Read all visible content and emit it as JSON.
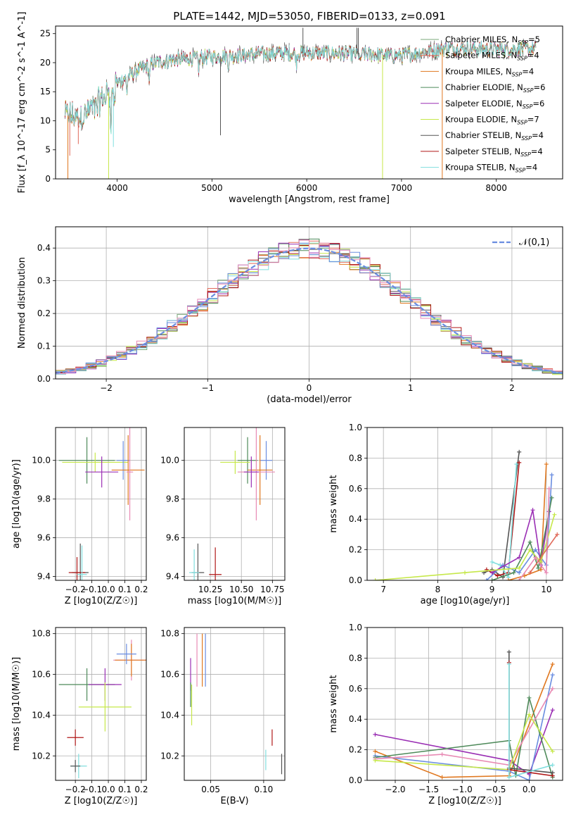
{
  "title": "PLATE=1442, MJD=53050, FIBERID=0133, z=0.091",
  "series": [
    {
      "name": "Chabrier MILES, N_SSP=5",
      "color": "#7aa97a"
    },
    {
      "name": "Salpeter MILES, N_SSP=4",
      "color": "#e06a5a"
    },
    {
      "name": "Kroupa MILES, N_SSP=4",
      "color": "#e07820"
    },
    {
      "name": "Chabrier ELODIE, N_SSP=6",
      "color": "#4e8a5a"
    },
    {
      "name": "Salpeter ELODIE, N_SSP=6",
      "color": "#9a2fb4"
    },
    {
      "name": "Kroupa ELODIE, N_SSP=7",
      "color": "#c6e84a"
    },
    {
      "name": "Chabrier STELIB, N_SSP=4",
      "color": "#555555"
    },
    {
      "name": "Salpeter STELIB, N_SSP=4",
      "color": "#b01818"
    },
    {
      "name": "Kroupa STELIB, N_SSP=4",
      "color": "#80dede"
    }
  ],
  "extra_colors": {
    "blue": "#6a8de0",
    "pink": "#e88ab4",
    "gray": "#808080"
  },
  "chart_data": [
    {
      "id": "spectrum",
      "type": "line",
      "xlabel": "wavelength [Angstrom, rest frame]",
      "ylabel": "Flux [f_λ 10^-17 erg cm^-2 s^-1 A^-1]",
      "xlim": [
        3350,
        8700
      ],
      "ylim": [
        0,
        26.3
      ],
      "xticks": [
        4000,
        5000,
        6000,
        7000,
        8000
      ],
      "yticks": [
        0,
        5,
        10,
        15,
        20,
        25
      ],
      "legend_position": "top-right",
      "spectrum_shape": {
        "x": [
          3450,
          3600,
          3800,
          4000,
          4200,
          4400,
          4600,
          5000,
          5500,
          6000,
          6500,
          7000,
          7500,
          8000,
          8400
        ],
        "y": [
          11,
          10.5,
          13,
          16.5,
          18.5,
          20,
          20.5,
          21,
          21.5,
          21.7,
          21.5,
          21.2,
          22.5,
          22.3,
          22.4
        ]
      }
    },
    {
      "id": "residual_histogram",
      "type": "line",
      "xlabel": "(data-model)/error",
      "ylabel": "Normed distribution",
      "xlim": [
        -2.5,
        2.5
      ],
      "ylim": [
        0,
        0.465
      ],
      "xticks": [
        -2,
        -1,
        0,
        1,
        2
      ],
      "yticks": [
        0.0,
        0.1,
        0.2,
        0.3,
        0.4
      ],
      "legend_position": "top-right",
      "reference": {
        "name": "𝒩(0,1)",
        "mean": 0,
        "sd": 1
      }
    },
    {
      "id": "age_vs_Z",
      "type": "scatter",
      "xlabel": "Z [log10(Z/Z☉)]",
      "ylabel": "age  [log10(age/yr)]",
      "xlim": [
        -0.32,
        0.23
      ],
      "ylim": [
        9.38,
        10.17
      ],
      "xticks": [
        -0.2,
        -0.1,
        0.0,
        0.1,
        0.2
      ],
      "yticks": [
        9.4,
        9.6,
        9.8,
        10.0
      ],
      "points": [
        {
          "x": -0.13,
          "y": 10.0,
          "xerr": 0.17,
          "yerr": 0.12,
          "c": "#4e8a5a"
        },
        {
          "x": -0.08,
          "y": 9.99,
          "xerr": 0.2,
          "yerr": 0.05,
          "c": "#c6e84a"
        },
        {
          "x": 0.09,
          "y": 10.0,
          "xerr": 0.04,
          "yerr": 0.1,
          "c": "#6a8de0"
        },
        {
          "x": 0.12,
          "y": 9.95,
          "xerr": 0.1,
          "yerr": 0.18,
          "c": "#e07820"
        },
        {
          "x": 0.13,
          "y": 9.94,
          "xerr": 0.02,
          "yerr": 0.25,
          "c": "#e88ab4"
        },
        {
          "x": -0.04,
          "y": 9.94,
          "xerr": 0.1,
          "yerr": 0.08,
          "c": "#9a2fb4"
        },
        {
          "x": -0.17,
          "y": 9.42,
          "xerr": 0.05,
          "yerr": 0.15,
          "c": "#555555"
        },
        {
          "x": -0.19,
          "y": 9.42,
          "xerr": 0.05,
          "yerr": 0.08,
          "c": "#b01818"
        },
        {
          "x": -0.16,
          "y": 9.41,
          "xerr": 0.03,
          "yerr": 0.15,
          "c": "#80dede"
        }
      ]
    },
    {
      "id": "age_vs_mass",
      "type": "scatter",
      "xlabel": "mass [log10(M/M☉)]",
      "ylabel": "",
      "xlim": [
        10.04,
        10.85
      ],
      "ylim": [
        9.38,
        10.17
      ],
      "xticks": [
        10.25,
        10.5,
        10.75
      ],
      "yticks": [
        9.4,
        9.6,
        9.8,
        10.0
      ],
      "points": [
        {
          "x": 10.55,
          "y": 10.0,
          "xerr": 0.08,
          "yerr": 0.12,
          "c": "#4e8a5a"
        },
        {
          "x": 10.45,
          "y": 9.99,
          "xerr": 0.12,
          "yerr": 0.06,
          "c": "#c6e84a"
        },
        {
          "x": 10.7,
          "y": 10.0,
          "xerr": 0.05,
          "yerr": 0.1,
          "c": "#6a8de0"
        },
        {
          "x": 10.65,
          "y": 9.95,
          "xerr": 0.1,
          "yerr": 0.18,
          "c": "#e07820"
        },
        {
          "x": 10.62,
          "y": 9.94,
          "xerr": 0.15,
          "yerr": 0.25,
          "c": "#e88ab4"
        },
        {
          "x": 10.58,
          "y": 9.94,
          "xerr": 0.06,
          "yerr": 0.08,
          "c": "#9a2fb4"
        },
        {
          "x": 10.15,
          "y": 9.42,
          "xerr": 0.05,
          "yerr": 0.15,
          "c": "#555555"
        },
        {
          "x": 10.29,
          "y": 9.41,
          "xerr": 0.05,
          "yerr": 0.14,
          "c": "#b01818"
        },
        {
          "x": 10.12,
          "y": 9.42,
          "xerr": 0.04,
          "yerr": 0.12,
          "c": "#80dede"
        }
      ]
    },
    {
      "id": "mass_weight_vs_age",
      "type": "line",
      "xlabel": "age  [log10(age/yr)]",
      "ylabel": "mass weight",
      "xlim": [
        6.7,
        10.3
      ],
      "ylim": [
        0,
        1.0
      ],
      "xticks": [
        7,
        8,
        9,
        10
      ],
      "yticks": [
        0.0,
        0.2,
        0.4,
        0.6,
        0.8,
        1.0
      ],
      "lines": [
        {
          "c": "#555555",
          "x": [
            8.85,
            9.0,
            9.2,
            9.5
          ],
          "y": [
            0.05,
            0.07,
            0.02,
            0.84
          ]
        },
        {
          "c": "#b01818",
          "x": [
            8.9,
            9.1,
            9.3,
            9.5
          ],
          "y": [
            0.07,
            0.03,
            0.05,
            0.77
          ]
        },
        {
          "c": "#80dede",
          "x": [
            9.0,
            9.15,
            9.3,
            9.45
          ],
          "y": [
            0.12,
            0.1,
            0.02,
            0.76
          ]
        },
        {
          "c": "#6a8de0",
          "x": [
            8.9,
            9.2,
            9.5,
            9.8,
            10.0,
            10.1
          ],
          "y": [
            0.0,
            0.1,
            0.05,
            0.2,
            0.1,
            0.69
          ]
        },
        {
          "c": "#e07820",
          "x": [
            9.3,
            9.6,
            9.9,
            10.0
          ],
          "y": [
            0.0,
            0.03,
            0.07,
            0.76
          ]
        },
        {
          "c": "#9a2fb4",
          "x": [
            9.0,
            9.5,
            9.75,
            9.9,
            10.05
          ],
          "y": [
            0.05,
            0.15,
            0.46,
            0.1,
            0.45
          ]
        },
        {
          "c": "#4e8a5a",
          "x": [
            9.0,
            9.4,
            9.7,
            9.85,
            10.1
          ],
          "y": [
            0.0,
            0.05,
            0.25,
            0.08,
            0.54
          ]
        },
        {
          "c": "#c6e84a",
          "x": [
            6.85,
            8.5,
            9.5,
            9.7,
            9.9,
            10.15
          ],
          "y": [
            0.0,
            0.05,
            0.08,
            0.2,
            0.12,
            0.43
          ]
        },
        {
          "c": "#e88ab4",
          "x": [
            9.5,
            9.8,
            10.0,
            10.05
          ],
          "y": [
            0.0,
            0.15,
            0.05,
            0.6
          ]
        },
        {
          "c": "#e06a5a",
          "x": [
            9.7,
            10.2
          ],
          "y": [
            0.05,
            0.3
          ]
        }
      ]
    },
    {
      "id": "mass_vs_Z",
      "type": "scatter",
      "xlabel": "Z [log10(Z/Z☉)]",
      "ylabel": "mass [log10(M/M☉)]",
      "xlim": [
        -0.32,
        0.23
      ],
      "ylim": [
        10.08,
        10.83
      ],
      "xticks": [
        -0.2,
        -0.1,
        0.0,
        0.1,
        0.2
      ],
      "yticks": [
        10.2,
        10.4,
        10.6,
        10.8
      ],
      "points": [
        {
          "x": 0.14,
          "y": 10.67,
          "xerr": 0.11,
          "yerr": 0.1,
          "c": "#e88ab4"
        },
        {
          "x": 0.14,
          "y": 10.67,
          "xerr": 0.1,
          "yerr": 0.08,
          "c": "#e07820"
        },
        {
          "x": 0.11,
          "y": 10.7,
          "xerr": 0.06,
          "yerr": 0.05,
          "c": "#6a8de0"
        },
        {
          "x": -0.13,
          "y": 10.55,
          "xerr": 0.17,
          "yerr": 0.08,
          "c": "#4e8a5a"
        },
        {
          "x": -0.02,
          "y": 10.55,
          "xerr": 0.1,
          "yerr": 0.08,
          "c": "#9a2fb4"
        },
        {
          "x": -0.02,
          "y": 10.44,
          "xerr": 0.16,
          "yerr": 0.12,
          "c": "#c6e84a"
        },
        {
          "x": -0.2,
          "y": 10.29,
          "xerr": 0.05,
          "yerr": 0.04,
          "c": "#b01818"
        },
        {
          "x": -0.18,
          "y": 10.15,
          "xerr": 0.05,
          "yerr": 0.06,
          "c": "#80dede"
        },
        {
          "x": -0.2,
          "y": 10.15,
          "xerr": 0.03,
          "yerr": 0.03,
          "c": "#555555"
        }
      ]
    },
    {
      "id": "mass_vs_EBV",
      "type": "scatter",
      "xlabel": "E(B-V)",
      "ylabel": "",
      "xlim": [
        0.025,
        0.12
      ],
      "ylim": [
        10.08,
        10.83
      ],
      "xticks": [
        0.05,
        0.1
      ],
      "yticks": [
        10.2,
        10.4,
        10.6,
        10.8
      ],
      "points": [
        {
          "x": 0.037,
          "y": 10.67,
          "xerr": 0,
          "yerr": 0.13,
          "c": "#e88ab4"
        },
        {
          "x": 0.042,
          "y": 10.67,
          "xerr": 0,
          "yerr": 0.13,
          "c": "#e07820"
        },
        {
          "x": 0.045,
          "y": 10.67,
          "xerr": 0,
          "yerr": 0.13,
          "c": "#6a8de0"
        },
        {
          "x": 0.031,
          "y": 10.6,
          "xerr": 0,
          "yerr": 0.08,
          "c": "#9a2fb4"
        },
        {
          "x": 0.032,
          "y": 10.45,
          "xerr": 0,
          "yerr": 0.1,
          "c": "#c6e84a"
        },
        {
          "x": 0.031,
          "y": 10.5,
          "xerr": 0,
          "yerr": 0.06,
          "c": "#4e8a5a"
        },
        {
          "x": 0.108,
          "y": 10.29,
          "xerr": 0,
          "yerr": 0.04,
          "c": "#b01818"
        },
        {
          "x": 0.102,
          "y": 10.18,
          "xerr": 0,
          "yerr": 0.05,
          "c": "#80dede"
        },
        {
          "x": 0.117,
          "y": 10.16,
          "xerr": 0,
          "yerr": 0.05,
          "c": "#555555"
        }
      ]
    },
    {
      "id": "mass_weight_vs_Z",
      "type": "line",
      "xlabel": "Z [log10(Z/Z☉)]",
      "ylabel": "mass weight",
      "xlim": [
        -2.42,
        0.5
      ],
      "ylim": [
        0,
        1.0
      ],
      "xticks": [
        -2.0,
        -1.5,
        -1.0,
        -0.5,
        0.0
      ],
      "yticks": [
        0.0,
        0.2,
        0.4,
        0.6,
        0.8,
        1.0
      ],
      "lines": [
        {
          "c": "#9a2fb4",
          "x": [
            -2.3,
            -0.3,
            0.0,
            0.35
          ],
          "y": [
            0.3,
            0.13,
            0.04,
            0.46
          ]
        },
        {
          "c": "#e07820",
          "x": [
            -2.3,
            -1.3,
            -0.3,
            0.35
          ],
          "y": [
            0.19,
            0.02,
            0.03,
            0.76
          ]
        },
        {
          "c": "#6a8de0",
          "x": [
            -2.3,
            -0.3,
            0.0,
            0.35
          ],
          "y": [
            0.16,
            0.06,
            0.0,
            0.69
          ]
        },
        {
          "c": "#4e8a5a",
          "x": [
            -2.3,
            -0.3,
            -0.2,
            0.0,
            0.35
          ],
          "y": [
            0.15,
            0.26,
            0.03,
            0.54,
            0.02
          ]
        },
        {
          "c": "#e88ab4",
          "x": [
            -2.3,
            -1.3,
            -0.3,
            0.35
          ],
          "y": [
            0.14,
            0.17,
            0.1,
            0.6
          ]
        },
        {
          "c": "#c6e84a",
          "x": [
            -2.3,
            -0.3,
            0.0,
            0.35
          ],
          "y": [
            0.13,
            0.07,
            0.43,
            0.19
          ]
        },
        {
          "c": "#555555",
          "x": [
            -0.3,
            -0.3,
            0.35
          ],
          "y": [
            0.84,
            0.08,
            0.05
          ]
        },
        {
          "c": "#b01818",
          "x": [
            -0.3,
            -0.3,
            0.35
          ],
          "y": [
            0.77,
            0.07,
            0.03
          ]
        },
        {
          "c": "#80dede",
          "x": [
            -0.3,
            -0.3,
            0.35
          ],
          "y": [
            0.76,
            0.02,
            0.1
          ]
        }
      ]
    }
  ]
}
